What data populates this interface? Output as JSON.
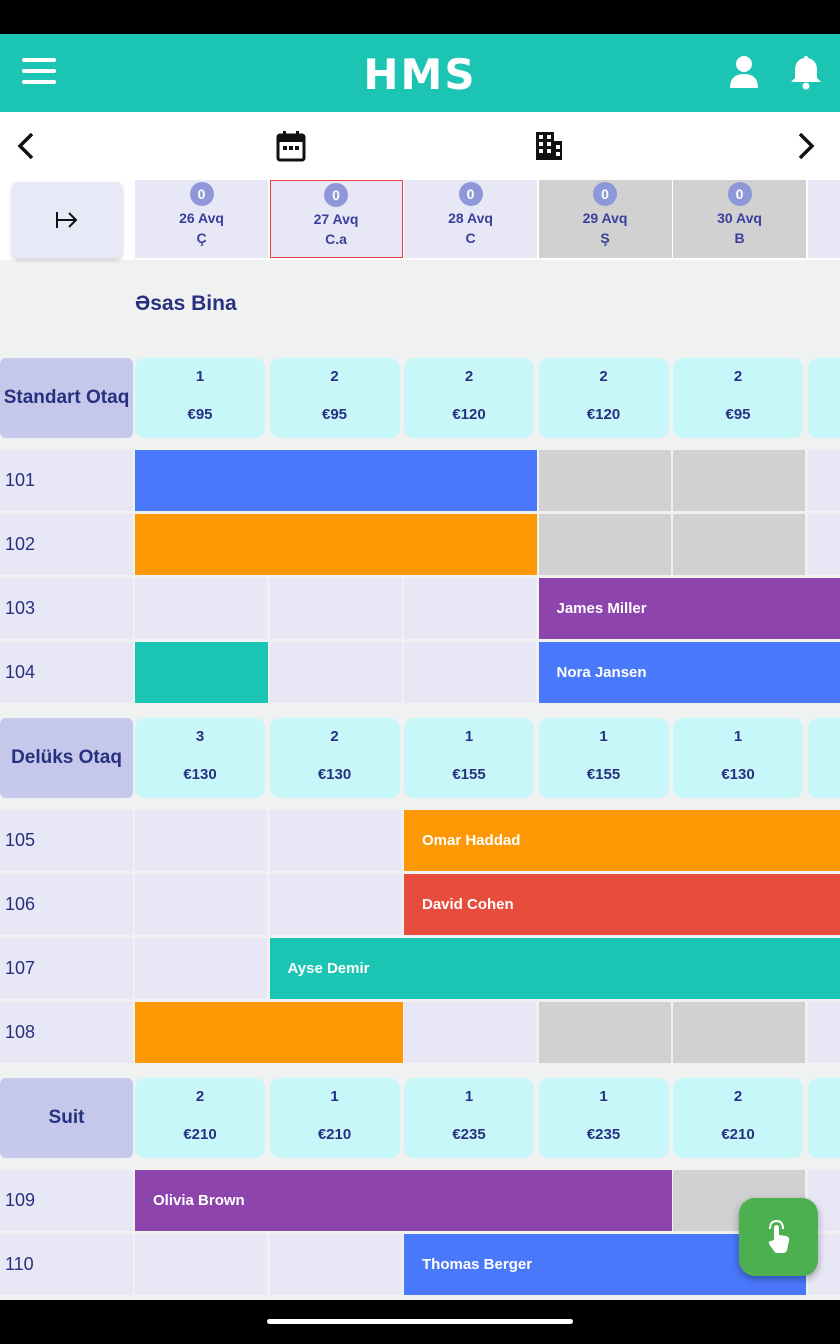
{
  "app": {
    "title": "HMS"
  },
  "dates": [
    {
      "count": "0",
      "label": "26 Avq",
      "day": "Ç",
      "weekend": false,
      "today": false
    },
    {
      "count": "0",
      "label": "27 Avq",
      "day": "C.a",
      "weekend": false,
      "today": true
    },
    {
      "count": "0",
      "label": "28 Avq",
      "day": "C",
      "weekend": false,
      "today": false
    },
    {
      "count": "0",
      "label": "29 Avq",
      "day": "Ş",
      "weekend": true,
      "today": false
    },
    {
      "count": "0",
      "label": "30 Avq",
      "day": "B",
      "weekend": true,
      "today": false
    }
  ],
  "building": {
    "name": "Əsas Bina"
  },
  "room_types": [
    {
      "name": "Standart Otaq",
      "summary": [
        {
          "count": "1",
          "price": "€95"
        },
        {
          "count": "2",
          "price": "€95"
        },
        {
          "count": "2",
          "price": "€120"
        },
        {
          "count": "2",
          "price": "€120"
        },
        {
          "count": "2",
          "price": "€95"
        }
      ],
      "rooms": [
        {
          "number": "101",
          "bookings": [
            {
              "guest": "",
              "start": 0,
              "end": 2.99,
              "color": "#4a78fb"
            }
          ]
        },
        {
          "number": "102",
          "bookings": [
            {
              "guest": "",
              "start": 0,
              "end": 2.99,
              "color": "#fb9804"
            }
          ]
        },
        {
          "number": "103",
          "bookings": [
            {
              "guest": "James Miller",
              "start": 3,
              "end": 5.3,
              "color": "#8e44ad"
            }
          ]
        },
        {
          "number": "104",
          "bookings": [
            {
              "guest": "",
              "start": 0,
              "end": 0.99,
              "color": "#1cc4b4"
            },
            {
              "guest": "Nora Jansen",
              "start": 3,
              "end": 5.3,
              "color": "#4a78fb"
            }
          ]
        }
      ]
    },
    {
      "name": "Delüks Otaq",
      "summary": [
        {
          "count": "3",
          "price": "€130"
        },
        {
          "count": "2",
          "price": "€130"
        },
        {
          "count": "1",
          "price": "€155"
        },
        {
          "count": "1",
          "price": "€155"
        },
        {
          "count": "1",
          "price": "€130"
        }
      ],
      "rooms": [
        {
          "number": "105",
          "bookings": [
            {
              "guest": "Omar Haddad",
              "start": 2,
              "end": 5.3,
              "color": "#fb9804"
            }
          ]
        },
        {
          "number": "106",
          "bookings": [
            {
              "guest": "David Cohen",
              "start": 2,
              "end": 5.3,
              "color": "#e74c3c"
            }
          ]
        },
        {
          "number": "107",
          "bookings": [
            {
              "guest": "Ayse Demir",
              "start": 1,
              "end": 5.3,
              "color": "#1cc4b4"
            }
          ]
        },
        {
          "number": "108",
          "bookings": [
            {
              "guest": "",
              "start": 0,
              "end": 1.99,
              "color": "#fb9804"
            }
          ]
        }
      ]
    },
    {
      "name": "Suit",
      "summary": [
        {
          "count": "2",
          "price": "€210"
        },
        {
          "count": "1",
          "price": "€210"
        },
        {
          "count": "1",
          "price": "€235"
        },
        {
          "count": "1",
          "price": "€235"
        },
        {
          "count": "2",
          "price": "€210"
        }
      ],
      "rooms": [
        {
          "number": "109",
          "bookings": [
            {
              "guest": "Olivia Brown",
              "start": 0,
              "end": 3.99,
              "color": "#8e44ad"
            }
          ]
        },
        {
          "number": "110",
          "bookings": [
            {
              "guest": "Thomas Berger",
              "start": 2,
              "end": 4.99,
              "color": "#4a78fb"
            }
          ]
        }
      ]
    }
  ],
  "icons": {
    "menu": "menu-icon",
    "user": "user-icon",
    "bell": "bell-icon",
    "prev": "chevron-left-icon",
    "calendar": "calendar-icon",
    "building": "building-icon",
    "next": "chevron-right-icon",
    "collapse": "collapse-icon",
    "fab": "touch-icon"
  },
  "colors": {
    "primary": "#1cc4b4",
    "fab": "#4caf50",
    "today_border": "#e0443a"
  }
}
